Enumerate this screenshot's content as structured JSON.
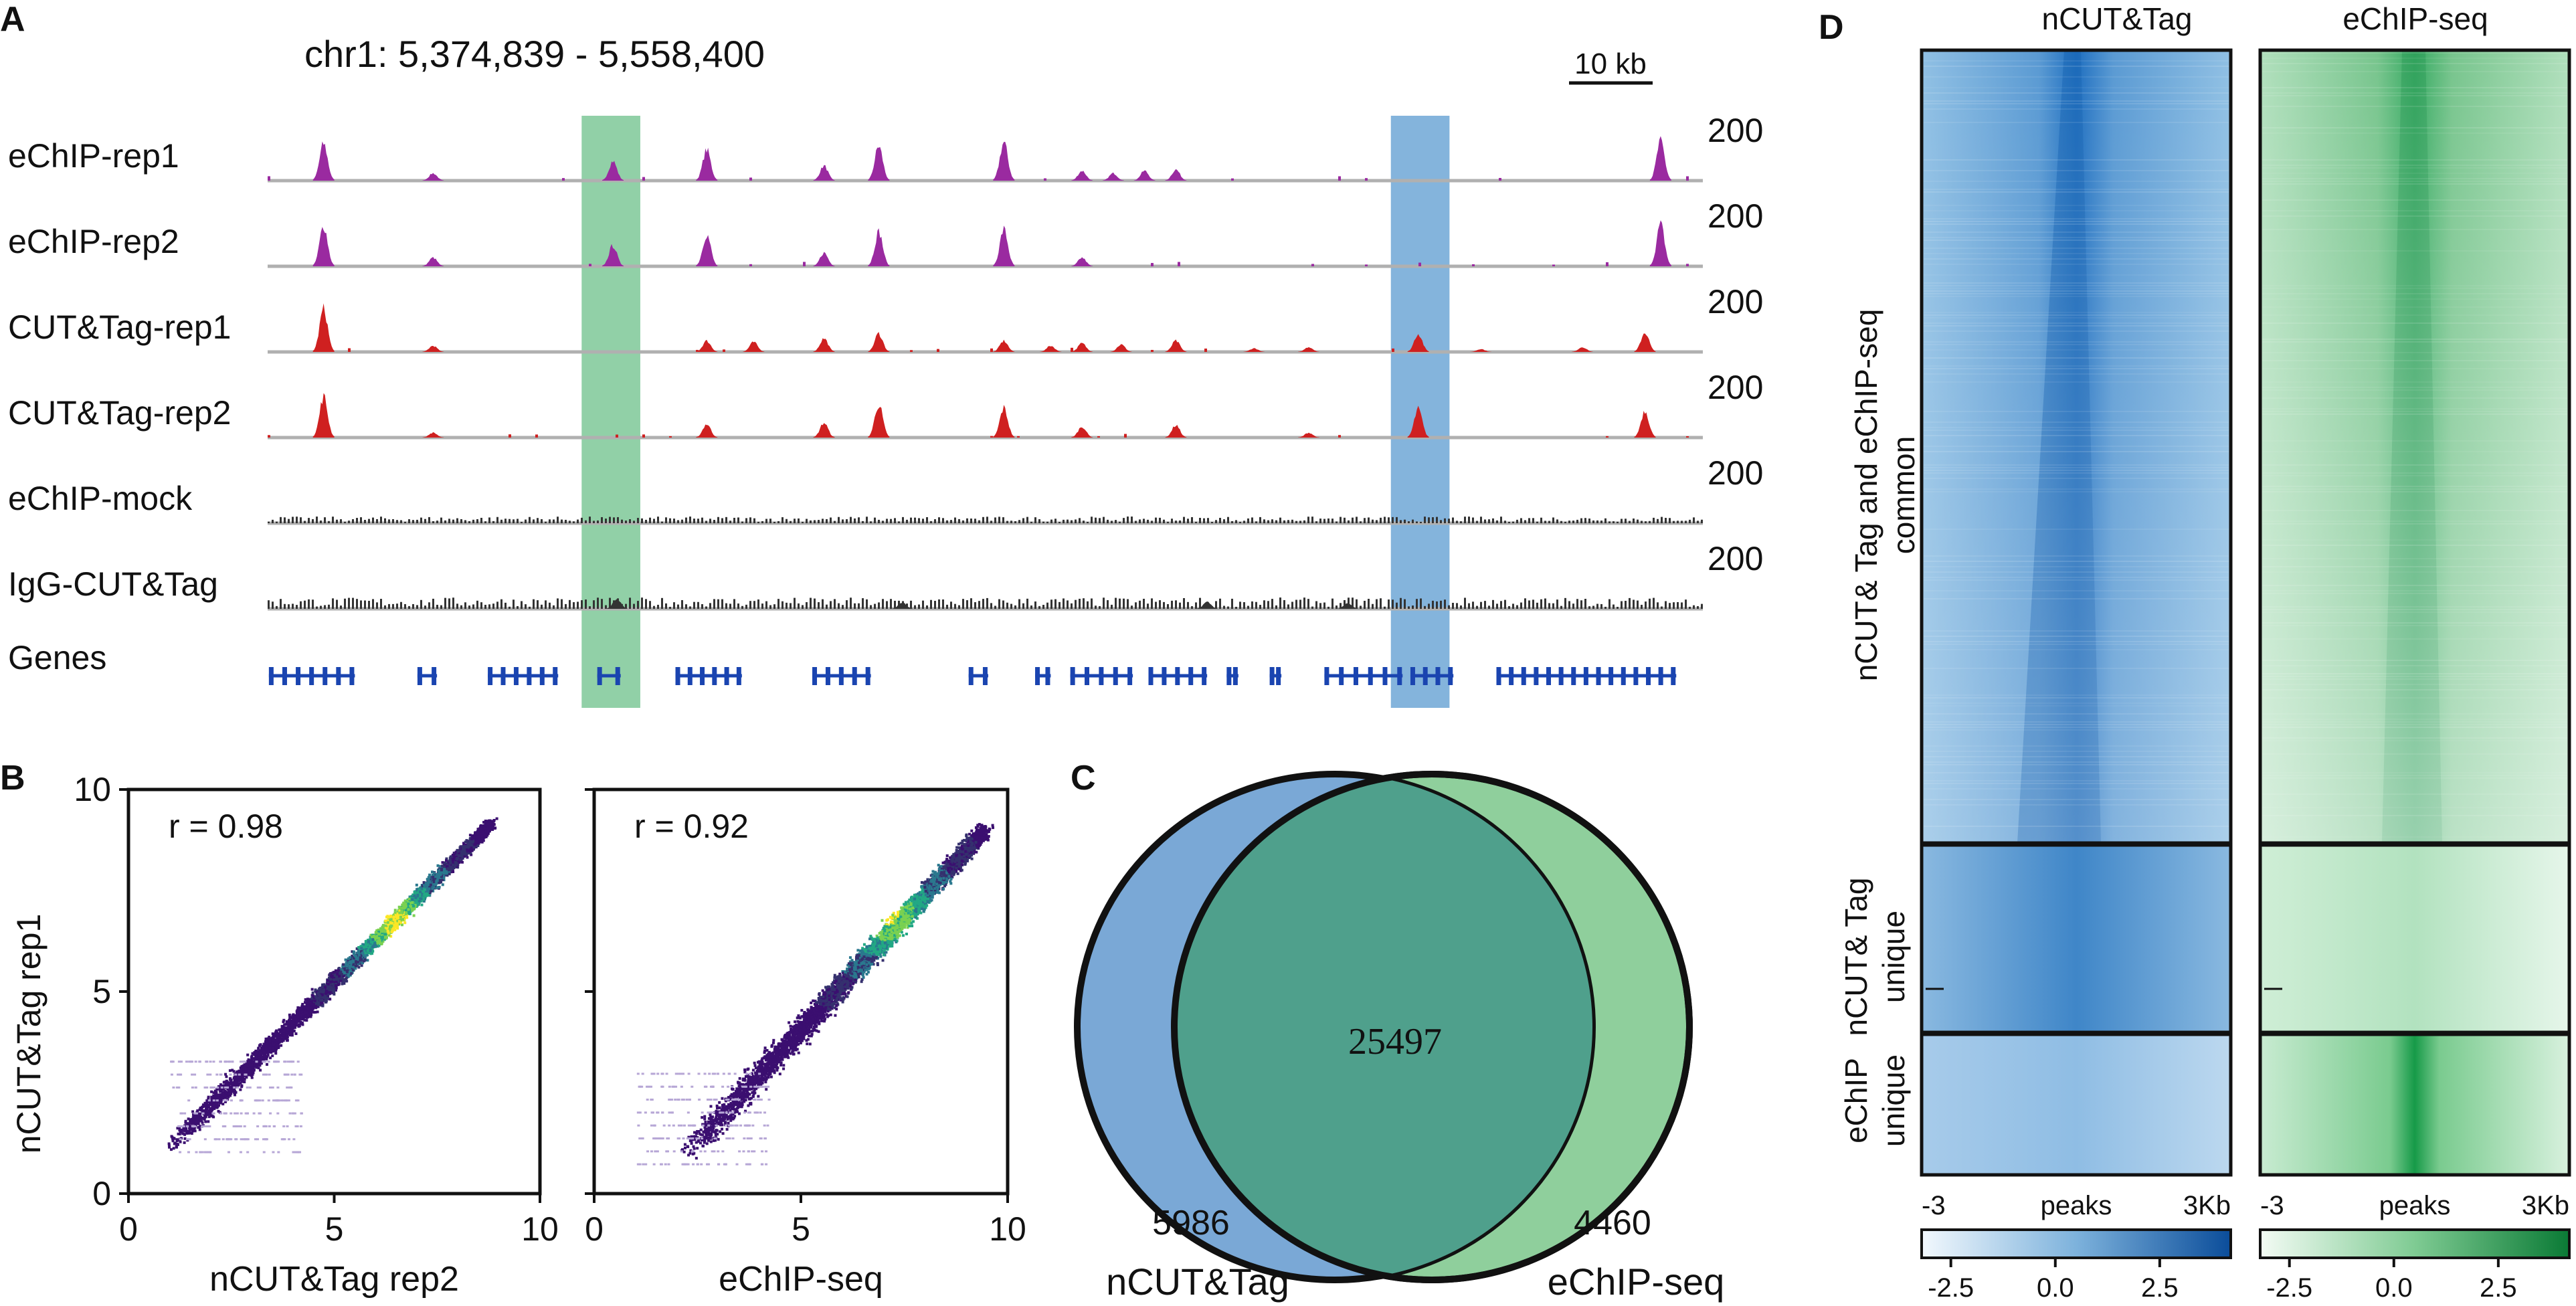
{
  "panel_letters": {
    "a": "A",
    "b": "B",
    "c": "C",
    "d": "D"
  },
  "colors": {
    "echip_track": "#9a2aa0",
    "cut_track": "#cf2020",
    "mock_track": "#333333",
    "gene": "#1a44b0",
    "highlight_green": "#6cc08a",
    "highlight_blue": "#5b9bd0",
    "venn_left": "#7aa8d6",
    "venn_right": "#8fcf9c",
    "venn_overlap": "#4fa08c",
    "heat_blue": "#1f6fc0",
    "heat_green": "#1fa050"
  },
  "chart_data": [
    {
      "type": "genome_tracks",
      "panel": "A",
      "title": "chr1: 5,374,839 - 5,558,400",
      "region": {
        "chrom": "chr1",
        "start": 5374839,
        "end": 5558400
      },
      "scale_bar": "10 kb",
      "highlight_regions": [
        {
          "color": "green",
          "start": 5415000,
          "end": 5422500
        },
        {
          "color": "blue",
          "start": 5518500,
          "end": 5526000
        }
      ],
      "tracks": [
        {
          "name": "eChIP-rep1",
          "kind": "echip",
          "max": "200",
          "peaks": [
            [
              5382000,
              150
            ],
            [
              5396000,
              30
            ],
            [
              5419000,
              80
            ],
            [
              5431000,
              125
            ],
            [
              5446000,
              60
            ],
            [
              5453000,
              140
            ],
            [
              5469000,
              155
            ],
            [
              5479000,
              40
            ],
            [
              5483000,
              30
            ],
            [
              5487000,
              40
            ],
            [
              5491000,
              45
            ],
            [
              5553000,
              160
            ]
          ]
        },
        {
          "name": "eChIP-rep2",
          "kind": "echip",
          "max": "200",
          "peaks": [
            [
              5382000,
              165
            ],
            [
              5396000,
              35
            ],
            [
              5419000,
              85
            ],
            [
              5431000,
              130
            ],
            [
              5446000,
              55
            ],
            [
              5453000,
              140
            ],
            [
              5469000,
              150
            ],
            [
              5479000,
              35
            ],
            [
              5553000,
              170
            ]
          ]
        },
        {
          "name": "CUT&Tag-rep1",
          "kind": "cut",
          "max": "200",
          "peaks": [
            [
              5382000,
              175
            ],
            [
              5396000,
              25
            ],
            [
              5431000,
              45
            ],
            [
              5437000,
              40
            ],
            [
              5446000,
              55
            ],
            [
              5453000,
              75
            ],
            [
              5469000,
              45
            ],
            [
              5475000,
              25
            ],
            [
              5479000,
              35
            ],
            [
              5484000,
              30
            ],
            [
              5491000,
              45
            ],
            [
              5501000,
              15
            ],
            [
              5508000,
              20
            ],
            [
              5522000,
              75
            ],
            [
              5530000,
              12
            ],
            [
              5543000,
              20
            ],
            [
              5551000,
              80
            ]
          ]
        },
        {
          "name": "CUT&Tag-rep2",
          "kind": "cut",
          "max": "200",
          "peaks": [
            [
              5382000,
              165
            ],
            [
              5396000,
              20
            ],
            [
              5431000,
              55
            ],
            [
              5446000,
              60
            ],
            [
              5453000,
              135
            ],
            [
              5469000,
              120
            ],
            [
              5479000,
              45
            ],
            [
              5491000,
              50
            ],
            [
              5508000,
              20
            ],
            [
              5522000,
              115
            ],
            [
              5551000,
              110
            ]
          ]
        },
        {
          "name": "eChIP-mock",
          "kind": "mock",
          "max": "200",
          "peaks": []
        },
        {
          "name": "IgG-CUT&Tag",
          "kind": "igg",
          "max": "200",
          "peaks": [
            [
              5419500,
              40
            ],
            [
              5456000,
              25
            ],
            [
              5495000,
              28
            ],
            [
              5513000,
              22
            ]
          ]
        }
      ],
      "gene_track_label": "Genes",
      "genes": [
        [
          5375000,
          5386000
        ],
        [
          5394000,
          5396500
        ],
        [
          5403000,
          5412000
        ],
        [
          5417000,
          5420000
        ],
        [
          5427000,
          5435500
        ],
        [
          5444500,
          5452000
        ],
        [
          5464500,
          5467000
        ],
        [
          5473000,
          5475000
        ],
        [
          5477500,
          5485500
        ],
        [
          5487500,
          5495000
        ],
        [
          5497500,
          5499000
        ],
        [
          5503000,
          5504500
        ],
        [
          5510000,
          5520000
        ],
        [
          5521000,
          5526500
        ],
        [
          5532000,
          5555000
        ]
      ]
    },
    {
      "type": "scatter",
      "panel": "B-left",
      "annotation": "r = 0.98",
      "r_value": 0.98,
      "xlabel": "nCUT&Tag rep2",
      "ylabel": "nCUT&Tag rep1",
      "xlim": [
        0,
        10
      ],
      "ylim": [
        0,
        10
      ],
      "xticks": [
        "0",
        "5",
        "10"
      ],
      "yticks": [
        "0",
        "5",
        "10"
      ],
      "trend": {
        "from": [
          1.0,
          1.2
        ],
        "to": [
          8.8,
          9.2
        ]
      },
      "density_peak": [
        6.5,
        6.7
      ]
    },
    {
      "type": "scatter",
      "panel": "B-right",
      "annotation": "r = 0.92",
      "r_value": 0.92,
      "xlabel": "eChIP-seq",
      "ylabel": "",
      "xlim": [
        0,
        10
      ],
      "ylim": [
        0,
        10
      ],
      "xticks": [
        "0",
        "5",
        "10"
      ],
      "yticks": [],
      "trend": {
        "from": [
          2.2,
          1.0
        ],
        "to": [
          9.4,
          9.0
        ]
      },
      "density_peak": [
        7.0,
        7.0
      ]
    },
    {
      "type": "venn",
      "panel": "C",
      "sets": [
        {
          "name": "nCUT&Tag",
          "unique": "5986"
        },
        {
          "name": "eChIP-seq",
          "unique": "4460"
        }
      ],
      "overlap": "25497"
    },
    {
      "type": "heatmap",
      "panel": "D",
      "columns": [
        {
          "title": "nCUT&Tag",
          "colormap": "Blues",
          "colorbar_ticks": [
            "-2.5",
            "0.0",
            "2.5"
          ]
        },
        {
          "title": "eChIP-seq",
          "colormap": "Greens",
          "colorbar_ticks": [
            "-2.5",
            "0.0",
            "2.5"
          ]
        }
      ],
      "row_groups": [
        {
          "label_lines": [
            "nCUT& Tag and  eChIP-seq",
            "common"
          ],
          "regions": 25497
        },
        {
          "label_lines": [
            "nCUT& Tag",
            "unique"
          ],
          "regions": 5986
        },
        {
          "label_lines": [
            "eChIP",
            "unique"
          ],
          "regions": 4460
        }
      ],
      "x_axis": {
        "left": "-3",
        "center": "peaks",
        "right": "3Kb"
      },
      "colorbar_range": [
        -3.2,
        4.2
      ]
    }
  ]
}
